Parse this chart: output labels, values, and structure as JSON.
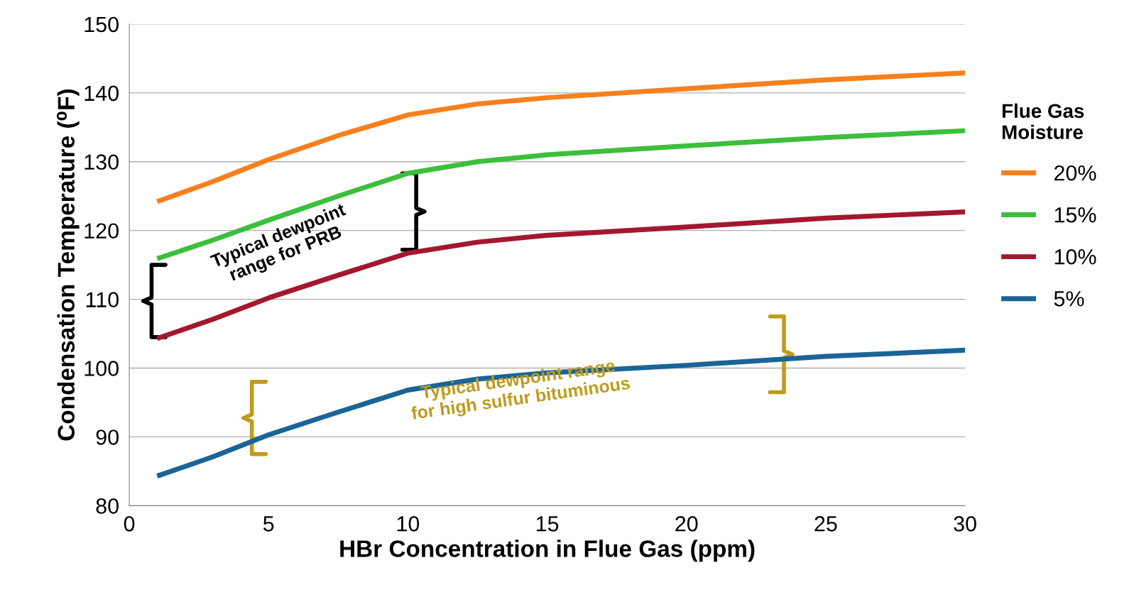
{
  "chart_data": {
    "type": "line",
    "xlabel": "HBr Concentration in Flue Gas (ppm)",
    "ylabel": "Condensation Temperature (⁰F)",
    "legend_title": "Flue Gas\nMoisture",
    "xlim": [
      0,
      30
    ],
    "xticks": [
      0,
      5,
      10,
      15,
      20,
      25,
      30
    ],
    "ylim": [
      80,
      150
    ],
    "yticks": [
      80,
      90,
      100,
      110,
      120,
      130,
      140,
      150
    ],
    "grid": "y",
    "legend": "right",
    "marker": "none",
    "line_style": "solid",
    "series": [
      {
        "name": "20%",
        "color": "#f7801e",
        "x": [
          1,
          3,
          5,
          7.5,
          10,
          12.5,
          15,
          20,
          25,
          30
        ],
        "values": [
          124.2,
          127.1,
          130.3,
          133.8,
          136.8,
          138.4,
          139.3,
          140.6,
          141.9,
          142.9
        ]
      },
      {
        "name": "15%",
        "color": "#3cbf3c",
        "x": [
          1,
          3,
          5,
          7.5,
          10,
          12.5,
          15,
          20,
          25,
          30
        ],
        "values": [
          115.9,
          118.6,
          121.5,
          125,
          128.3,
          130,
          131,
          132.3,
          133.5,
          134.5
        ]
      },
      {
        "name": "10%",
        "color": "#a3172f",
        "x": [
          1,
          3,
          5,
          7.5,
          10,
          12.5,
          15,
          20,
          25,
          30
        ],
        "values": [
          104.3,
          107.1,
          110.2,
          113.5,
          116.7,
          118.3,
          119.3,
          120.5,
          121.8,
          122.7
        ]
      },
      {
        "name": "5%",
        "color": "#1a6496",
        "x": [
          1,
          3,
          5,
          7.5,
          10,
          12.5,
          15,
          20,
          25,
          30
        ],
        "values": [
          84.3,
          87.1,
          90.3,
          93.6,
          96.8,
          98.4,
          99.3,
          100.4,
          101.7,
          102.6
        ]
      }
    ],
    "annotations": [
      "Typical dewpoint\nrange for PRB",
      "Typical dewpoint range\nfor high sulfur bituminous"
    ]
  }
}
